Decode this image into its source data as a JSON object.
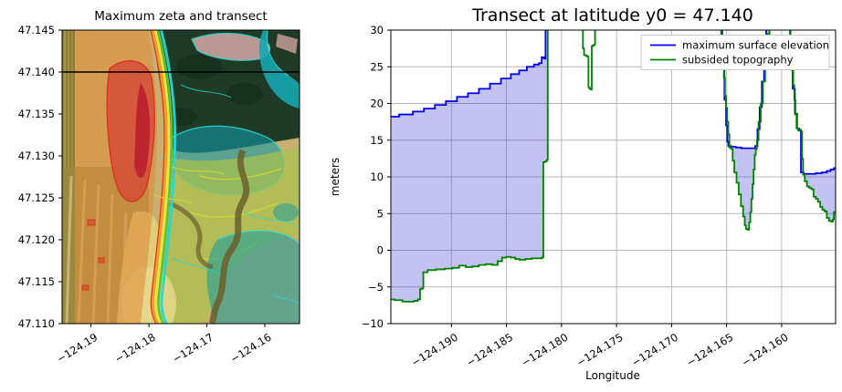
{
  "left_plot": {
    "title": "Maximum zeta and transect",
    "xlim": [
      -124.195,
      -124.154
    ],
    "ylim": [
      47.11,
      47.145
    ],
    "transect_latitude": 47.14,
    "xticks": [
      {
        "value": -124.19,
        "label": "−124.19"
      },
      {
        "value": -124.18,
        "label": "−124.18"
      },
      {
        "value": -124.17,
        "label": "−124.17"
      },
      {
        "value": -124.16,
        "label": "−124.16"
      }
    ],
    "yticks": [
      {
        "value": 47.145,
        "label": "47.145"
      },
      {
        "value": 47.14,
        "label": "47.140"
      },
      {
        "value": 47.135,
        "label": "47.135"
      },
      {
        "value": 47.13,
        "label": "47.130"
      },
      {
        "value": 47.125,
        "label": "47.125"
      },
      {
        "value": 47.12,
        "label": "47.120"
      },
      {
        "value": 47.115,
        "label": "47.115"
      },
      {
        "value": 47.11,
        "label": "47.110"
      }
    ]
  },
  "right_plot": {
    "title": "Transect at latitude y0 = 47.140",
    "xlabel": "Longitude",
    "ylabel": "meters",
    "xlim": [
      -124.1955,
      -124.1551
    ],
    "ylim": [
      -10,
      30
    ],
    "grid_color": "#b4b4b4",
    "legend": {
      "position": "upper right",
      "items": [
        {
          "label": "maximum surface elevation",
          "color": "#0000e8"
        },
        {
          "label": "subsided topography",
          "color": "#008000"
        }
      ]
    },
    "xticks": [
      {
        "value": -124.19,
        "label": "−124.190"
      },
      {
        "value": -124.185,
        "label": "−124.185"
      },
      {
        "value": -124.18,
        "label": "−124.180"
      },
      {
        "value": -124.175,
        "label": "−124.175"
      },
      {
        "value": -124.17,
        "label": "−124.170"
      },
      {
        "value": -124.165,
        "label": "−124.165"
      },
      {
        "value": -124.16,
        "label": "−124.160"
      }
    ],
    "yticks": [
      {
        "value": 30,
        "label": "30"
      },
      {
        "value": 25,
        "label": "25"
      },
      {
        "value": 20,
        "label": "20"
      },
      {
        "value": 15,
        "label": "15"
      },
      {
        "value": 10,
        "label": "10"
      },
      {
        "value": 5,
        "label": "5"
      },
      {
        "value": 0,
        "label": "0"
      },
      {
        "value": -5,
        "label": "−5"
      },
      {
        "value": -10,
        "label": "−10"
      }
    ]
  },
  "chart_data": [
    {
      "type": "heatmap",
      "title": "Maximum zeta and transect",
      "xlim": [
        -124.195,
        -124.154
      ],
      "ylim": [
        47.11,
        47.145
      ],
      "xticks": [
        -124.19,
        -124.18,
        -124.17,
        -124.16
      ],
      "yticks": [
        47.145,
        47.14,
        47.135,
        47.13,
        47.125,
        47.12,
        47.115,
        47.11
      ],
      "annotations": [
        "horizontal transect line at latitude 47.140"
      ]
    },
    {
      "type": "line",
      "title": "Transect at latitude y0 = 47.140",
      "xlabel": "Longitude",
      "ylabel": "meters",
      "xlim": [
        -124.1955,
        -124.1551
      ],
      "ylim": [
        -10,
        30
      ],
      "grid": true,
      "legend_position": "upper right",
      "offscreen_value": 36,
      "series": [
        {
          "name": "maximum surface elevation",
          "color": "#0000e8",
          "points": [
            [
              -124.1955,
              18.2
            ],
            [
              -124.194,
              18.5
            ],
            [
              -124.193,
              18.9
            ],
            [
              -124.192,
              19.3
            ],
            [
              -124.191,
              19.8
            ],
            [
              -124.19,
              20.3
            ],
            [
              -124.189,
              20.9
            ],
            [
              -124.188,
              21.4
            ],
            [
              -124.187,
              22.0
            ],
            [
              -124.186,
              22.7
            ],
            [
              -124.185,
              23.4
            ],
            [
              -124.1842,
              24.0
            ],
            [
              -124.1835,
              24.5
            ],
            [
              -124.1828,
              25.0
            ],
            [
              -124.1822,
              25.3
            ],
            [
              -124.1819,
              25.5
            ],
            [
              -124.1817,
              26.3
            ],
            [
              -124.1815,
              26.1
            ],
            [
              -124.1814,
              36
            ],
            [
              -124.1655,
              36
            ],
            [
              -124.1653,
              27
            ],
            [
              -124.1651,
              20.5
            ],
            [
              -124.165,
              17
            ],
            [
              -124.1649,
              14.8
            ],
            [
              -124.1648,
              14.2
            ],
            [
              -124.1644,
              14.1
            ],
            [
              -124.1639,
              14.0
            ],
            [
              -124.1634,
              13.9
            ],
            [
              -124.1629,
              13.9
            ],
            [
              -124.1625,
              13.9
            ],
            [
              -124.1623,
              14.2
            ],
            [
              -124.1621,
              16.5
            ],
            [
              -124.1619,
              19.5
            ],
            [
              -124.1617,
              23
            ],
            [
              -124.1615,
              27
            ],
            [
              -124.1613,
              31
            ],
            [
              -124.1612,
              36
            ],
            [
              -124.1593,
              36
            ],
            [
              -124.1591,
              27
            ],
            [
              -124.1589,
              22
            ],
            [
              -124.1587,
              18.6
            ],
            [
              -124.1585,
              16.6
            ],
            [
              -124.1583,
              16.4
            ],
            [
              -124.1582,
              10.6
            ],
            [
              -124.1578,
              10.4
            ],
            [
              -124.1572,
              10.4
            ],
            [
              -124.1566,
              10.5
            ],
            [
              -124.1561,
              10.6
            ],
            [
              -124.1557,
              10.8
            ],
            [
              -124.1554,
              11.0
            ],
            [
              -124.1551,
              11.2
            ]
          ]
        },
        {
          "name": "subsided topography",
          "color": "#008000",
          "points": [
            [
              -124.1955,
              -6.7
            ],
            [
              -124.1948,
              -6.8
            ],
            [
              -124.1941,
              -7.0
            ],
            [
              -124.1936,
              -7.0
            ],
            [
              -124.1932,
              -6.9
            ],
            [
              -124.1929,
              -6.7
            ],
            [
              -124.1928,
              -5.3
            ],
            [
              -124.1926,
              -5.2
            ],
            [
              -124.1925,
              -3.0
            ],
            [
              -124.1918,
              -2.7
            ],
            [
              -124.191,
              -2.6
            ],
            [
              -124.1902,
              -2.5
            ],
            [
              -124.1896,
              -2.4
            ],
            [
              -124.189,
              -2.1
            ],
            [
              -124.1884,
              -2.3
            ],
            [
              -124.1878,
              -2.2
            ],
            [
              -124.1872,
              -2.0
            ],
            [
              -124.1866,
              -1.9
            ],
            [
              -124.186,
              -2.0
            ],
            [
              -124.1856,
              -1.5
            ],
            [
              -124.1852,
              -1.0
            ],
            [
              -124.1848,
              -0.9
            ],
            [
              -124.1844,
              -1.0
            ],
            [
              -124.184,
              -1.2
            ],
            [
              -124.1836,
              -1.3
            ],
            [
              -124.183,
              -1.2
            ],
            [
              -124.1824,
              -1.1
            ],
            [
              -124.1819,
              -1.1
            ],
            [
              -124.1817,
              -1.0
            ],
            [
              -124.1816,
              12.0
            ],
            [
              -124.1814,
              12.1
            ],
            [
              -124.1813,
              12.3
            ],
            [
              -124.1812,
              36
            ],
            [
              -124.1781,
              36
            ],
            [
              -124.178,
              27.5
            ],
            [
              -124.1779,
              26.6
            ],
            [
              -124.1777,
              26.5
            ],
            [
              -124.1776,
              26.4
            ],
            [
              -124.1775,
              22.2
            ],
            [
              -124.1774,
              22.0
            ],
            [
              -124.1773,
              21.9
            ],
            [
              -124.1772,
              27.8
            ],
            [
              -124.1771,
              27.9
            ],
            [
              -124.177,
              28.0
            ],
            [
              -124.1769,
              36
            ],
            [
              -124.1656,
              36
            ],
            [
              -124.1654,
              29
            ],
            [
              -124.1653,
              26
            ],
            [
              -124.1652,
              23.5
            ],
            [
              -124.1651,
              21
            ],
            [
              -124.165,
              19.4
            ],
            [
              -124.1649,
              17.5
            ],
            [
              -124.1648,
              15.8
            ],
            [
              -124.1647,
              14.0
            ],
            [
              -124.1645,
              13.8
            ],
            [
              -124.1644,
              12.2
            ],
            [
              -124.1642,
              10.6
            ],
            [
              -124.164,
              9.2
            ],
            [
              -124.1638,
              7.6
            ],
            [
              -124.1636,
              6.0
            ],
            [
              -124.1634,
              4.6
            ],
            [
              -124.1633,
              3.4
            ],
            [
              -124.1632,
              2.9
            ],
            [
              -124.163,
              2.8
            ],
            [
              -124.1629,
              3.8
            ],
            [
              -124.1628,
              5.2
            ],
            [
              -124.1627,
              7.0
            ],
            [
              -124.1626,
              9.0
            ],
            [
              -124.1625,
              11.0
            ],
            [
              -124.1624,
              13.0
            ],
            [
              -124.1623,
              13.8
            ],
            [
              -124.1622,
              15.0
            ],
            [
              -124.162,
              17.5
            ],
            [
              -124.1618,
              20.0
            ],
            [
              -124.1616,
              23.0
            ],
            [
              -124.1614,
              26.0
            ],
            [
              -124.1612,
              29.5
            ],
            [
              -124.161,
              36
            ],
            [
              -124.1594,
              36
            ],
            [
              -124.1593,
              31
            ],
            [
              -124.1592,
              28.5
            ],
            [
              -124.1591,
              26.5
            ],
            [
              -124.159,
              24.5
            ],
            [
              -124.1589,
              22.5
            ],
            [
              -124.1588,
              20.5
            ],
            [
              -124.1587,
              18.5
            ],
            [
              -124.1586,
              16.6
            ],
            [
              -124.1584,
              16.3
            ],
            [
              -124.1582,
              16.2
            ],
            [
              -124.1581,
              12.5
            ],
            [
              -124.158,
              10.3
            ],
            [
              -124.1578,
              9.4
            ],
            [
              -124.1576,
              8.7
            ],
            [
              -124.1574,
              8.5
            ],
            [
              -124.1572,
              8.3
            ],
            [
              -124.157,
              7.3
            ],
            [
              -124.1568,
              7.0
            ],
            [
              -124.1566,
              6.6
            ],
            [
              -124.1564,
              5.9
            ],
            [
              -124.1562,
              5.5
            ],
            [
              -124.156,
              5.3
            ],
            [
              -124.1558,
              4.4
            ],
            [
              -124.1556,
              4.0
            ],
            [
              -124.1554,
              3.9
            ],
            [
              -124.1553,
              4.2
            ],
            [
              -124.1552,
              5.2
            ],
            [
              -124.1551,
              5.2
            ]
          ]
        }
      ],
      "fill_between": {
        "color": "rgba(55,55,215,0.30)",
        "regions": [
          [
            -124.1956,
            -124.18115
          ],
          [
            -124.1657,
            -124.16085
          ],
          [
            -124.15945,
            -124.155
          ]
        ]
      }
    }
  ]
}
